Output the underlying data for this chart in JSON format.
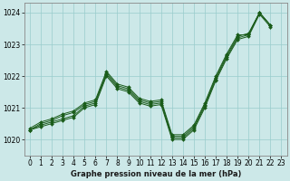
{
  "title": "Graphe pression niveau de la mer (hPa)",
  "bg_color": "#cce8e8",
  "grid_color": "#99cccc",
  "line_color": "#1a5c1a",
  "marker_color": "#1a5c1a",
  "xlim": [
    -0.5,
    23.5
  ],
  "ylim": [
    1019.5,
    1024.3
  ],
  "yticks": [
    1020,
    1021,
    1022,
    1023,
    1024
  ],
  "xticks": [
    0,
    1,
    2,
    3,
    4,
    5,
    6,
    7,
    8,
    9,
    10,
    11,
    12,
    13,
    14,
    15,
    16,
    17,
    18,
    19,
    20,
    21,
    22,
    23
  ],
  "series": [
    [
      1020.3,
      1020.4,
      1020.5,
      1020.6,
      1020.7,
      1021.0,
      1021.1,
      1022.0,
      1021.6,
      1021.5,
      1021.15,
      1021.05,
      1021.1,
      1020.0,
      1020.0,
      1020.3,
      1021.0,
      1021.85,
      1022.55,
      1023.15,
      1023.25,
      1023.95,
      1023.55,
      null
    ],
    [
      1020.3,
      1020.45,
      1020.55,
      1020.65,
      1020.75,
      1021.05,
      1021.15,
      1022.05,
      1021.65,
      1021.55,
      1021.2,
      1021.1,
      1021.15,
      1020.05,
      1020.05,
      1020.35,
      1021.05,
      1021.9,
      1022.6,
      1023.2,
      1023.3,
      1024.0,
      1023.6,
      null
    ],
    [
      1020.3,
      1020.5,
      1020.6,
      1020.75,
      1020.85,
      1021.1,
      1021.2,
      1022.1,
      1021.7,
      1021.6,
      1021.25,
      1021.15,
      1021.2,
      1020.1,
      1020.1,
      1020.4,
      1021.1,
      1021.95,
      1022.65,
      1023.25,
      1023.35,
      1024.0,
      1023.6,
      null
    ],
    [
      1020.35,
      1020.55,
      1020.65,
      1020.8,
      1020.9,
      1021.15,
      1021.25,
      1022.15,
      1021.75,
      1021.65,
      1021.3,
      1021.2,
      1021.25,
      1020.15,
      1020.15,
      1020.45,
      1021.15,
      1022.0,
      1022.7,
      1023.3,
      1023.3,
      1024.0,
      1023.6,
      null
    ]
  ]
}
